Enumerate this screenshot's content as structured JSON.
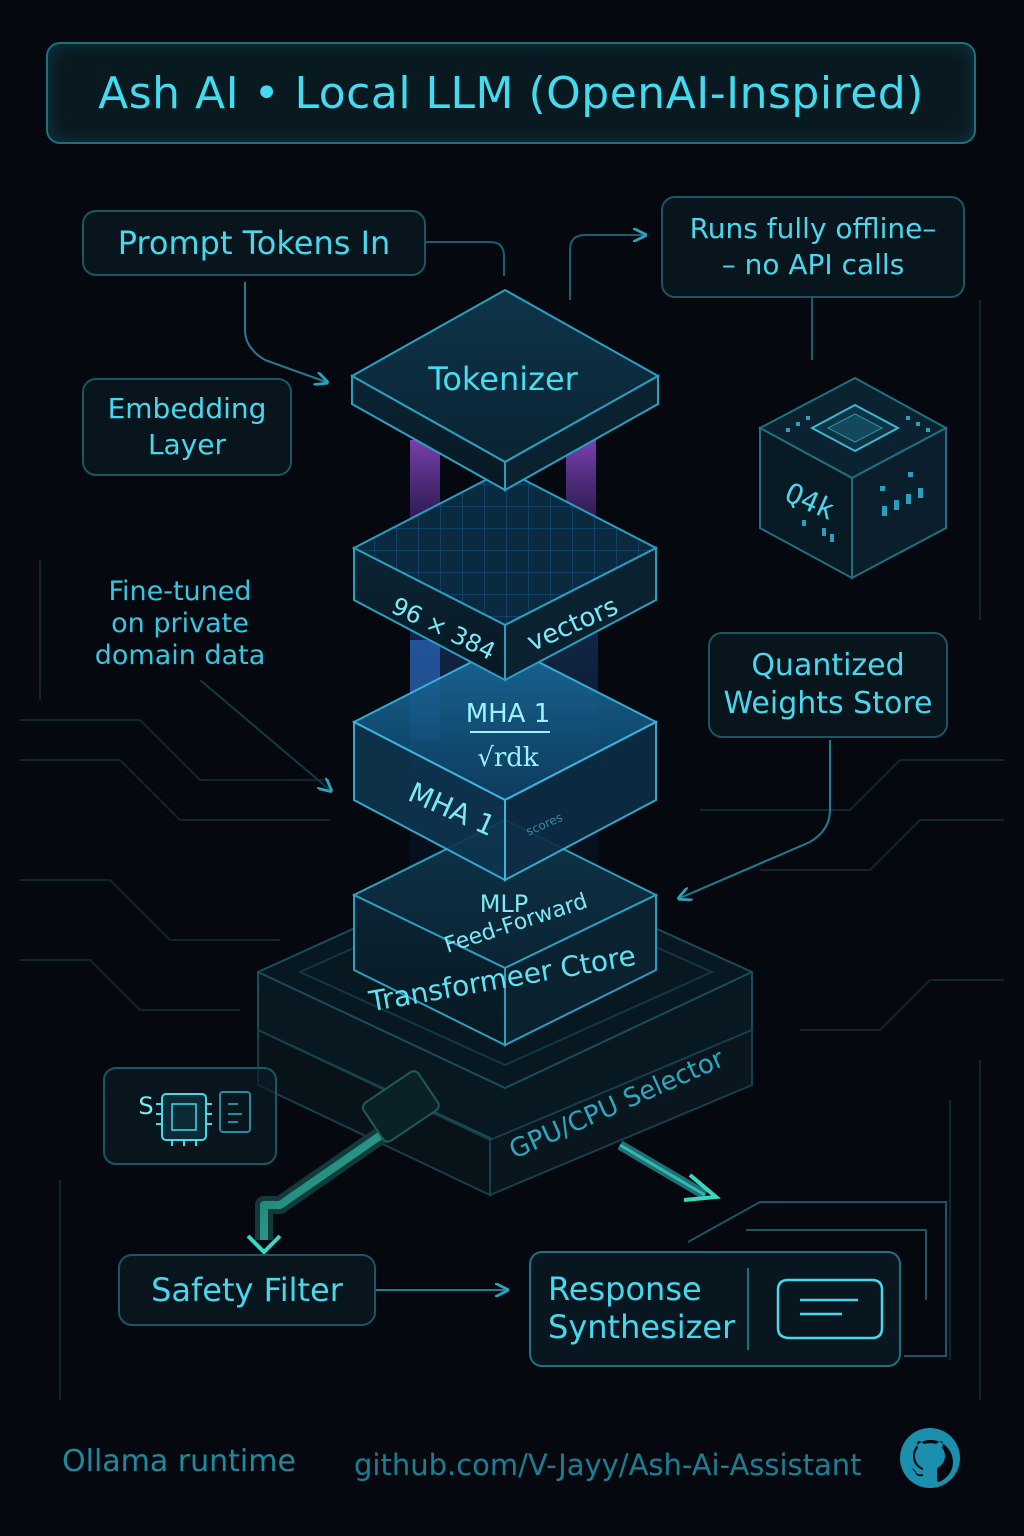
{
  "header": {
    "title": "Ash AI • Local LLM (OpenAI-Inspired)"
  },
  "callouts": {
    "prompt_tokens": "Prompt Tokens In",
    "offline_line1": "Runs fully offline–",
    "offline_line2": "– no API calls",
    "embedding_line1": "Embedding",
    "embedding_line2": "Layer",
    "finetuned_line1": "Fine-tuned",
    "finetuned_line2": "on private",
    "finetuned_line3": "domain data",
    "quantized_line1": "Quantized",
    "quantized_line2": "Weights Store",
    "cube_label": "Q4k",
    "chip_label": "S"
  },
  "stack": {
    "tokenizer": "Tokenizer",
    "embedding_dims": "96 × 384",
    "embedding_unit": "vectors",
    "attention_top": "MHA 1",
    "attention_formula": "√rdk",
    "attention_side": "MHA 1",
    "attention_small": "scores",
    "mlp_line1": "MLP",
    "mlp_line2": "Feed-Forward",
    "transformer_core": "Transformeer Ctore",
    "selector": "GPU/CPU Selector"
  },
  "pipeline": {
    "safety_filter": "Safety Filter",
    "response_line1": "Response",
    "response_line2": "Synthesizer"
  },
  "footer": {
    "runtime": "Ollama runtime",
    "repo": "github.com/V-Jayy/Ash-Ai-Assistant"
  },
  "colors": {
    "background": "#05090f",
    "accent_cyan": "#42dcf0",
    "slab_fill": "#0b2a3a",
    "slab_edge": "#2a9fc0",
    "glow_purple": "#8a4fd8",
    "glow_blue": "#2f7cf0"
  },
  "icons": [
    "github-icon",
    "chip-icon",
    "message-icon",
    "cpu-cube-icon"
  ]
}
